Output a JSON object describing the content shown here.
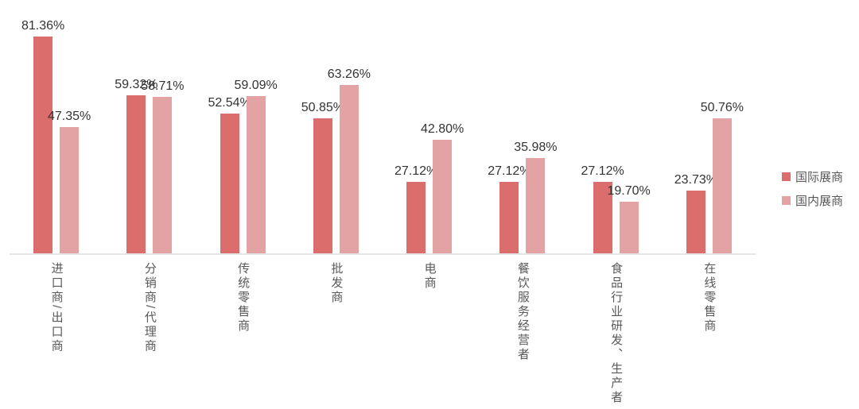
{
  "chart_data": {
    "type": "bar",
    "title": "",
    "xlabel": "",
    "ylabel": "",
    "categories": [
      "进口商/出口商",
      "分销商/代理商",
      "传统零售商",
      "批发商",
      "电商",
      "餐饮服务经营者",
      "食品行业研发、生产者",
      "在线零售商"
    ],
    "series": [
      {
        "name": "国际展商",
        "color": "#db6e6d",
        "values": [
          81.36,
          59.32,
          52.54,
          50.85,
          27.12,
          27.12,
          27.12,
          23.73
        ],
        "labels": [
          "81.36%",
          "59.32%",
          "52.54%",
          "50.85%",
          "27.12%",
          "27.12%",
          "27.12%",
          "23.73%"
        ]
      },
      {
        "name": "国内展商",
        "color": "#e3a2a4",
        "values": [
          47.35,
          58.71,
          59.09,
          63.26,
          42.8,
          35.98,
          19.7,
          50.76
        ],
        "labels": [
          "47.35%",
          "58.71%",
          "59.09%",
          "63.26%",
          "42.80%",
          "35.98%",
          "19.70%",
          "50.76%"
        ]
      }
    ],
    "ylim": [
      0,
      90
    ],
    "y_axis_visible": false,
    "x_axis_line": true,
    "grid": false,
    "legend_position": "right",
    "value_labels": "outside-end",
    "axis_line_color": "#e6e6e6"
  }
}
